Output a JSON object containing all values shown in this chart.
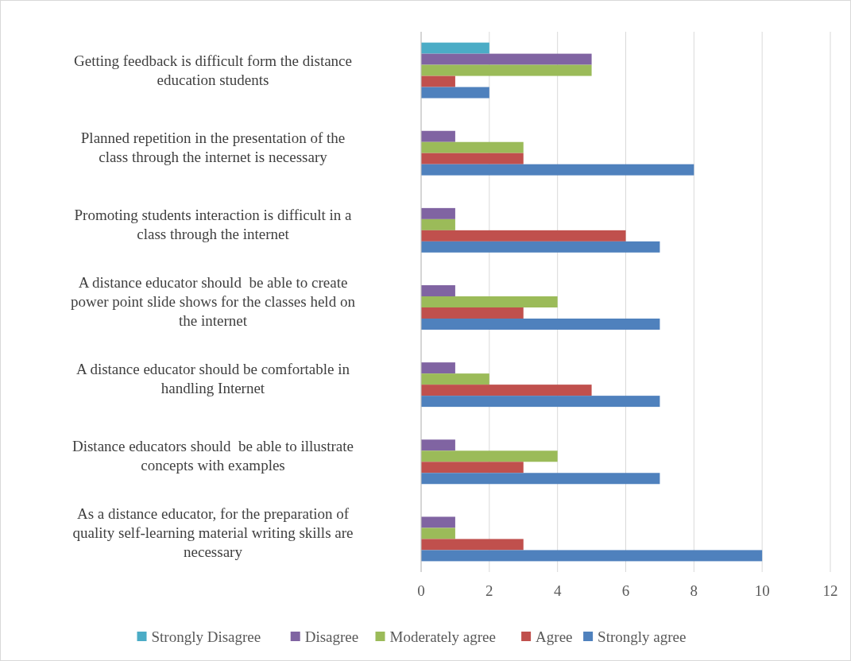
{
  "chart_data": {
    "type": "bar",
    "orientation": "horizontal",
    "categories": [
      "Getting feedback is difficult form the distance education students",
      "Planned repetition in the presentation of the class through the internet is necessary",
      "Promoting students interaction is difficult in a class through the internet",
      "A distance educator should  be able to create power point slide shows for the classes held on the internet",
      "A distance educator should be comfortable in handling Internet",
      "Distance educators should  be able to illustrate concepts with examples",
      "As a distance educator, for the preparation of quality self-learning material writing skills are necessary"
    ],
    "series": [
      {
        "name": "Strongly Disagree",
        "color": "#4bacc6",
        "values": [
          2,
          0,
          0,
          0,
          0,
          0,
          0
        ]
      },
      {
        "name": "Disagree",
        "color": "#8064a2",
        "values": [
          5,
          1,
          1,
          1,
          1,
          1,
          1
        ]
      },
      {
        "name": "Moderately agree",
        "color": "#9bbb59",
        "values": [
          5,
          3,
          1,
          4,
          2,
          4,
          1
        ]
      },
      {
        "name": "Agree",
        "color": "#c0504d",
        "values": [
          1,
          3,
          6,
          3,
          5,
          3,
          3
        ]
      },
      {
        "name": "Strongly agree",
        "color": "#4f81bd",
        "values": [
          2,
          8,
          7,
          7,
          7,
          7,
          10
        ]
      }
    ],
    "xlim": [
      0,
      12
    ],
    "xticks": [
      0,
      2,
      4,
      6,
      8,
      10,
      12
    ],
    "grid": "x",
    "legend": "bottom"
  }
}
